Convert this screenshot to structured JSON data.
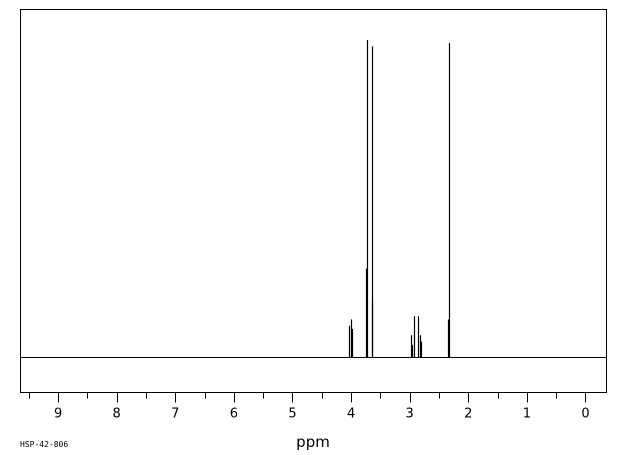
{
  "chart_data": {
    "type": "line",
    "title": "",
    "xlabel": "ppm",
    "ylabel": "",
    "xlim": [
      9.65,
      -0.35
    ],
    "x_reversed": true,
    "ticks": [
      9,
      8,
      7,
      6,
      5,
      4,
      3,
      2,
      1,
      0
    ],
    "tick_labels": [
      "9",
      "8",
      "7",
      "6",
      "5",
      "4",
      "3",
      "2",
      "1",
      "0"
    ],
    "footer_code": "HSP-42-806",
    "baseline": 0,
    "ylim": [
      -0.11,
      1.05
    ],
    "grid": false,
    "peaks": [
      {
        "ppm": 4.03,
        "height": 0.1
      },
      {
        "ppm": 4.01,
        "height": 0.12
      },
      {
        "ppm": 3.99,
        "height": 0.09
      },
      {
        "ppm": 3.74,
        "height": 0.28
      },
      {
        "ppm": 3.73,
        "height": 1.0
      },
      {
        "ppm": 3.65,
        "height": 0.98
      },
      {
        "ppm": 3.64,
        "height": 0.18
      },
      {
        "ppm": 2.98,
        "height": 0.07
      },
      {
        "ppm": 2.96,
        "height": 0.04
      },
      {
        "ppm": 2.93,
        "height": 0.13
      },
      {
        "ppm": 2.86,
        "height": 0.13
      },
      {
        "ppm": 2.83,
        "height": 0.07
      },
      {
        "ppm": 2.8,
        "height": 0.05
      },
      {
        "ppm": 2.34,
        "height": 0.12
      },
      {
        "ppm": 2.33,
        "height": 0.99
      }
    ]
  }
}
